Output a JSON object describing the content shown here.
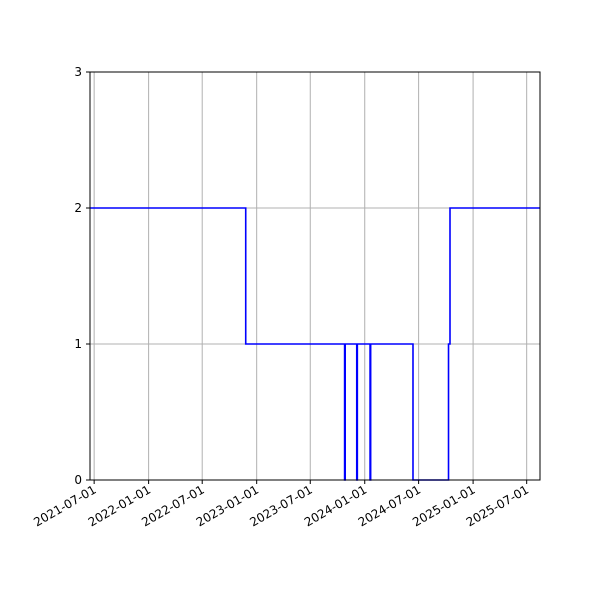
{
  "chart_data": {
    "type": "line",
    "title": "",
    "xlabel": "",
    "ylabel": "",
    "grid": true,
    "xlim": [
      "2021-06-17",
      "2025-08-15"
    ],
    "ylim": [
      0,
      3
    ],
    "x_ticks": [
      "2021-07-01",
      "2022-01-01",
      "2022-07-01",
      "2023-01-01",
      "2023-07-01",
      "2024-01-01",
      "2024-07-01",
      "2025-01-01",
      "2025-07-01"
    ],
    "y_ticks": [
      "0",
      "1",
      "2",
      "3"
    ],
    "series": [
      {
        "name": "",
        "color": "#0000ff",
        "step": "post",
        "x": [
          "2021-06-17",
          "2022-11-25",
          "2023-10-25",
          "2023-10-27",
          "2023-12-05",
          "2023-12-07",
          "2024-01-19",
          "2024-01-21",
          "2024-06-12",
          "2024-10-10",
          "2024-10-15",
          "2024-10-20",
          "2025-08-15"
        ],
        "y": [
          2,
          1,
          0,
          1,
          0,
          1,
          0,
          1,
          0,
          1,
          2,
          2,
          2
        ]
      }
    ]
  }
}
